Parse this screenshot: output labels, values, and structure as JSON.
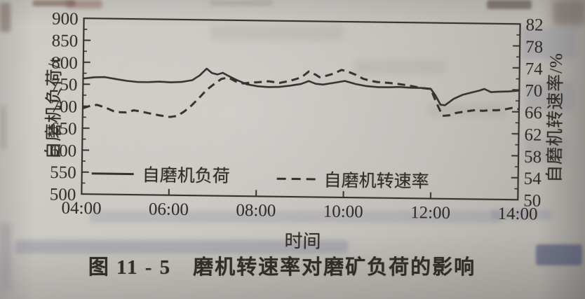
{
  "photo": {
    "paper_color": "#c6c3be",
    "ink_color": "#37322d"
  },
  "chart_data": {
    "type": "line",
    "caption": "图 11 - 5　磨机转速率对磨矿负荷的影响",
    "ink_color": "#37322d",
    "grid": "off",
    "legend_position": "inside-bottom",
    "x_axis": {
      "label": "时间",
      "range_hours": [
        4,
        14
      ],
      "ticks": [
        {
          "h": 4,
          "label": "04:00"
        },
        {
          "h": 6,
          "label": "06:00"
        },
        {
          "h": 8,
          "label": "08:00"
        },
        {
          "h": 10,
          "label": "10:00"
        },
        {
          "h": 12,
          "label": "12:00"
        },
        {
          "h": 14,
          "label": "14:00"
        }
      ]
    },
    "y_left": {
      "label": "自磨机负荷/t",
      "range": [
        500,
        900
      ],
      "ticks": [
        900,
        850,
        800,
        750,
        700,
        650,
        600,
        550,
        500
      ]
    },
    "y_right": {
      "label": "自磨机转速率/%",
      "range": [
        50,
        82
      ],
      "ticks": [
        82,
        78,
        74,
        70,
        66,
        62,
        58,
        54,
        50
      ]
    },
    "legend": [
      {
        "name": "自磨机负荷",
        "style": "solid"
      },
      {
        "name": "自磨机转速率",
        "style": "dashed"
      }
    ],
    "series": [
      {
        "name": "自磨机负荷",
        "axis": "left",
        "style": "solid",
        "unit": "t",
        "points": [
          [
            4.0,
            763
          ],
          [
            4.25,
            765
          ],
          [
            4.5,
            766
          ],
          [
            4.75,
            763
          ],
          [
            5.0,
            760
          ],
          [
            5.25,
            757
          ],
          [
            5.5,
            756
          ],
          [
            5.75,
            757
          ],
          [
            6.0,
            757
          ],
          [
            6.25,
            759
          ],
          [
            6.5,
            763
          ],
          [
            6.67,
            773
          ],
          [
            6.83,
            788
          ],
          [
            6.95,
            779
          ],
          [
            7.08,
            777
          ],
          [
            7.2,
            781
          ],
          [
            7.33,
            773
          ],
          [
            7.5,
            764
          ],
          [
            7.75,
            754
          ],
          [
            8.0,
            751
          ],
          [
            8.25,
            750
          ],
          [
            8.5,
            750
          ],
          [
            8.75,
            752
          ],
          [
            9.0,
            756
          ],
          [
            9.17,
            764
          ],
          [
            9.33,
            759
          ],
          [
            9.5,
            757
          ],
          [
            9.75,
            760
          ],
          [
            10.0,
            764
          ],
          [
            10.25,
            758
          ],
          [
            10.5,
            755
          ],
          [
            10.75,
            753
          ],
          [
            11.0,
            752
          ],
          [
            11.25,
            752
          ],
          [
            11.5,
            751
          ],
          [
            11.75,
            752
          ],
          [
            11.97,
            751
          ],
          [
            12.08,
            735
          ],
          [
            12.2,
            713
          ],
          [
            12.3,
            712
          ],
          [
            12.5,
            728
          ],
          [
            12.7,
            738
          ],
          [
            12.9,
            743
          ],
          [
            13.1,
            747
          ],
          [
            13.2,
            750
          ],
          [
            13.35,
            744
          ],
          [
            13.5,
            746
          ],
          [
            13.75,
            747
          ],
          [
            14.0,
            748
          ]
        ]
      },
      {
        "name": "自磨机转速率",
        "axis": "right",
        "style": "dashed",
        "unit": "%",
        "points": [
          [
            4.0,
            65.6
          ],
          [
            4.17,
            66.0
          ],
          [
            4.33,
            66.2
          ],
          [
            4.5,
            65.9
          ],
          [
            4.75,
            65.1
          ],
          [
            5.0,
            65.0
          ],
          [
            5.17,
            65.3
          ],
          [
            5.33,
            65.1
          ],
          [
            5.5,
            64.9
          ],
          [
            5.75,
            64.6
          ],
          [
            6.0,
            64.3
          ],
          [
            6.17,
            64.4
          ],
          [
            6.33,
            65.2
          ],
          [
            6.5,
            66.4
          ],
          [
            6.67,
            67.9
          ],
          [
            6.83,
            69.3
          ],
          [
            7.0,
            70.3
          ],
          [
            7.17,
            71.2
          ],
          [
            7.33,
            71.5
          ],
          [
            7.5,
            70.9
          ],
          [
            7.67,
            70.6
          ],
          [
            7.83,
            70.7
          ],
          [
            8.0,
            70.7
          ],
          [
            8.25,
            70.9
          ],
          [
            8.5,
            70.7
          ],
          [
            8.75,
            71.2
          ],
          [
            9.0,
            71.8
          ],
          [
            9.17,
            72.8
          ],
          [
            9.33,
            72.2
          ],
          [
            9.42,
            71.8
          ],
          [
            9.58,
            72.2
          ],
          [
            9.75,
            72.6
          ],
          [
            9.92,
            73.2
          ],
          [
            10.08,
            72.8
          ],
          [
            10.25,
            72.3
          ],
          [
            10.42,
            71.7
          ],
          [
            10.58,
            71.4
          ],
          [
            10.75,
            71.1
          ],
          [
            11.0,
            70.9
          ],
          [
            11.25,
            70.7
          ],
          [
            11.5,
            70.5
          ],
          [
            11.75,
            70.2
          ],
          [
            11.97,
            70.0
          ],
          [
            12.1,
            67.5
          ],
          [
            12.25,
            65.0
          ],
          [
            12.4,
            65.2
          ],
          [
            12.55,
            65.7
          ],
          [
            12.75,
            66.0
          ],
          [
            13.0,
            66.2
          ],
          [
            13.17,
            66.0
          ],
          [
            13.33,
            66.2
          ],
          [
            13.5,
            66.3
          ],
          [
            13.67,
            66.5
          ],
          [
            13.83,
            66.7
          ],
          [
            14.0,
            66.4
          ]
        ]
      }
    ]
  }
}
